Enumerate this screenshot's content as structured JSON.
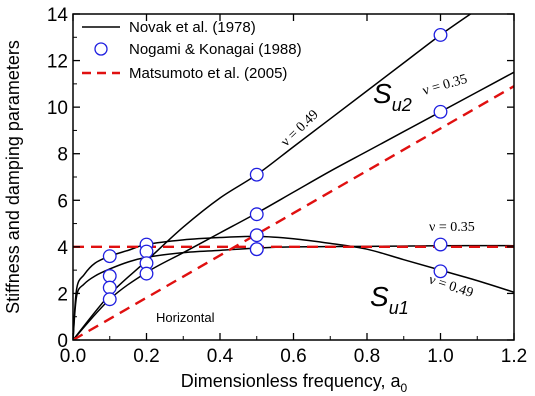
{
  "chart_data": {
    "type": "line",
    "xlabel": "Dimensionless frequency, a",
    "xlabel_subscript": "0",
    "ylabel": "Stiffness and damping parameters",
    "xlim": [
      0,
      1.2
    ],
    "ylim": [
      0,
      14
    ],
    "xticks": [
      "0.0",
      "0.2",
      "0.4",
      "0.6",
      "0.8",
      "1.0",
      "1.2"
    ],
    "yticks": [
      "0",
      "2",
      "4",
      "6",
      "8",
      "10",
      "12",
      "14"
    ],
    "grid": false,
    "legend_position": "top-left",
    "legend": [
      {
        "label": "Novak et al. (1978)",
        "style": "solid-line",
        "color": "#000000"
      },
      {
        "label": "Nogami & Konagai (1988)",
        "style": "open-circle",
        "color": "#1f1fe0"
      },
      {
        "label": "Matsumoto et al. (2005)",
        "style": "dashed-line",
        "color": "#e01010"
      }
    ],
    "series": [
      {
        "name": "Novak et al. (1978)",
        "group": "Su2 nu=0.49",
        "x": [
          0,
          0.1,
          0.2,
          0.3,
          0.4,
          0.5,
          0.6,
          0.7,
          0.8,
          0.9,
          1.0,
          1.1,
          1.2
        ],
        "y": [
          0,
          1.95,
          3.4,
          4.85,
          6.1,
          7.1,
          8.3,
          9.5,
          10.7,
          11.9,
          13.1,
          14.2,
          15.3
        ]
      },
      {
        "name": "Novak et al. (1978)",
        "group": "Su2 nu=0.35",
        "x": [
          0,
          0.1,
          0.2,
          0.3,
          0.4,
          0.5,
          0.6,
          0.7,
          0.8,
          0.9,
          1.0,
          1.1,
          1.2
        ],
        "y": [
          0,
          1.75,
          2.9,
          3.75,
          4.6,
          5.45,
          6.35,
          7.25,
          8.1,
          8.95,
          9.8,
          10.65,
          11.5
        ]
      },
      {
        "name": "Novak et al. (1978)",
        "group": "Su1 nu=0.35",
        "x": [
          0,
          0.01,
          0.03,
          0.06,
          0.1,
          0.15,
          0.2,
          0.3,
          0.4,
          0.5,
          0.6,
          0.8,
          1.0,
          1.2
        ],
        "y": [
          0,
          1.9,
          2.4,
          2.75,
          3.05,
          3.35,
          3.55,
          3.75,
          3.85,
          3.95,
          4.0,
          4.02,
          4.05,
          4.05
        ]
      },
      {
        "name": "Novak et al. (1978)",
        "group": "Su1 nu=0.49",
        "x": [
          0,
          0.01,
          0.03,
          0.06,
          0.1,
          0.15,
          0.2,
          0.3,
          0.4,
          0.5,
          0.6,
          0.7,
          0.8,
          0.9,
          1.0,
          1.1,
          1.2
        ],
        "y": [
          0,
          2.2,
          2.8,
          3.3,
          3.6,
          3.85,
          4.1,
          4.3,
          4.4,
          4.45,
          4.35,
          4.15,
          3.9,
          3.45,
          3.0,
          2.55,
          2.05
        ]
      },
      {
        "name": "Nogami & Konagai (1988)",
        "x": [
          0.1,
          0.1,
          0.1,
          0.1,
          0.2,
          0.2,
          0.2,
          0.2,
          0.5,
          0.5,
          0.5,
          0.5,
          0.5,
          1.0,
          1.0,
          1.0,
          1.0
        ],
        "y": [
          3.6,
          2.75,
          2.25,
          1.75,
          4.1,
          3.8,
          3.3,
          2.85,
          7.1,
          5.4,
          4.5,
          3.9,
          3.9,
          13.1,
          9.8,
          4.1,
          2.95
        ]
      },
      {
        "name": "Matsumoto et al. (2005)",
        "group": "Su2",
        "x": [
          0,
          1.2
        ],
        "y": [
          0,
          10.9
        ]
      },
      {
        "name": "Matsumoto et al. (2005)",
        "group": "Su1",
        "x": [
          0,
          1.2
        ],
        "y": [
          4.0,
          4.0
        ]
      }
    ],
    "annotations": {
      "su2_main": "S",
      "su2_sub": "u2",
      "su1_main": "S",
      "su1_sub": "u1",
      "nu_049_upper": "ν = 0.49",
      "nu_035_upper": "ν = 0.35",
      "nu_035_lower": "ν = 0.35",
      "nu_049_lower": "ν = 0.49",
      "horizontal": "Horizontal"
    },
    "colors": {
      "novak": "#000000",
      "nogami": "#1f1fe0",
      "matsumoto": "#e01010"
    }
  }
}
